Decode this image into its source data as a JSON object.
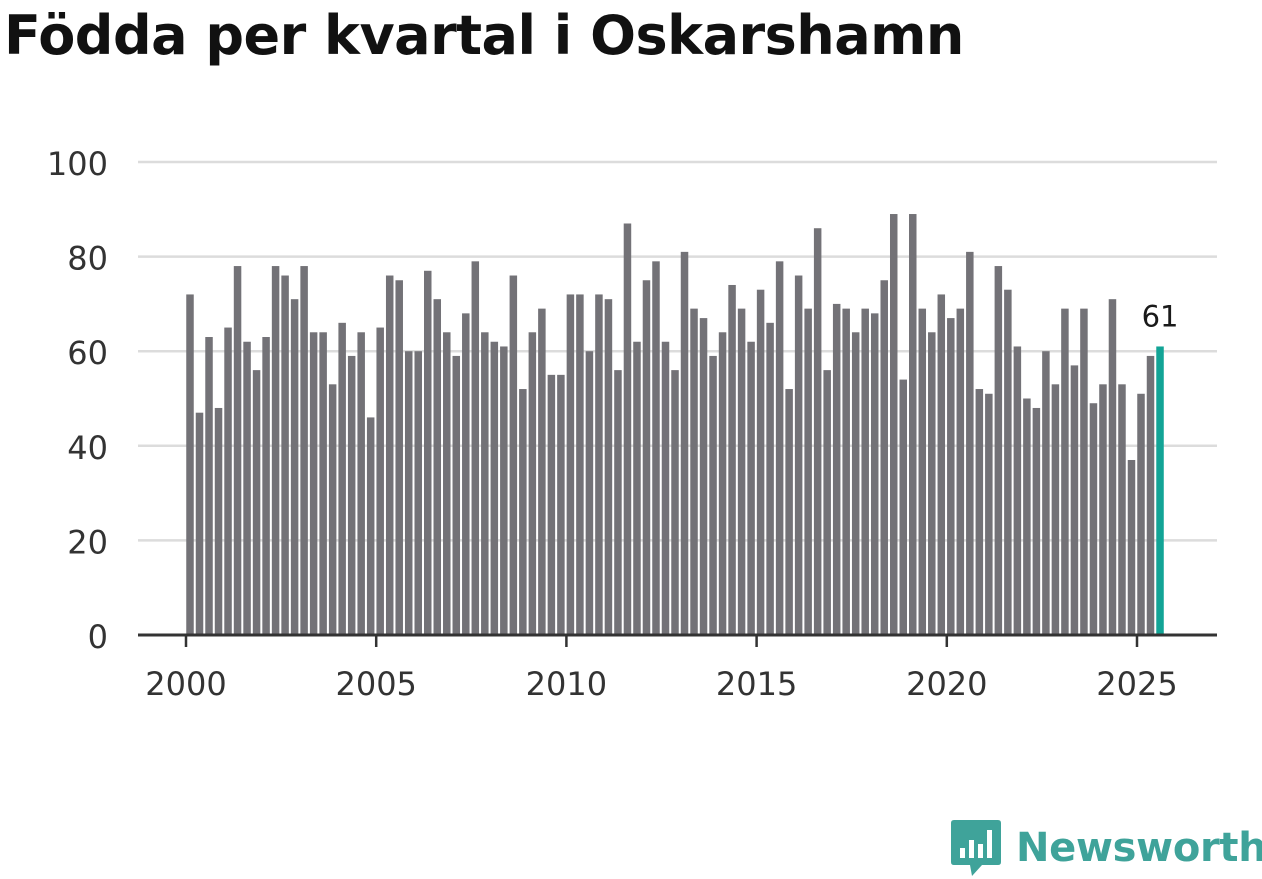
{
  "title": "Födda per kvartal i Oskarshamn",
  "logo_text": "Newsworthy",
  "colors": {
    "bar": "#737277",
    "highlight": "#12a496",
    "grid": "#dcdcdc",
    "axis": "#333333",
    "brand": "#3fa39a"
  },
  "chart_data": {
    "type": "bar",
    "x_start": "2000 Q1",
    "x_end": "2025 Q3",
    "x_ticks": [
      2000,
      2005,
      2010,
      2015,
      2020,
      2025
    ],
    "y_ticks": [
      0,
      20,
      40,
      60,
      80,
      100
    ],
    "ylim": [
      0,
      100
    ],
    "grid": true,
    "highlight_last": true,
    "annotation": "61",
    "values": [
      72,
      47,
      63,
      48,
      65,
      78,
      62,
      56,
      63,
      78,
      76,
      71,
      78,
      64,
      64,
      53,
      66,
      59,
      64,
      46,
      65,
      76,
      75,
      60,
      60,
      77,
      71,
      64,
      59,
      68,
      79,
      64,
      62,
      61,
      76,
      52,
      64,
      69,
      55,
      55,
      72,
      72,
      60,
      72,
      71,
      56,
      87,
      62,
      75,
      79,
      62,
      56,
      81,
      69,
      67,
      59,
      64,
      74,
      69,
      62,
      73,
      66,
      79,
      52,
      76,
      69,
      86,
      56,
      70,
      69,
      64,
      69,
      68,
      75,
      89,
      54,
      89,
      69,
      64,
      72,
      67,
      69,
      81,
      52,
      51,
      78,
      73,
      61,
      50,
      48,
      60,
      53,
      69,
      57,
      69,
      49,
      53,
      71,
      53,
      37,
      51,
      59,
      61
    ]
  }
}
